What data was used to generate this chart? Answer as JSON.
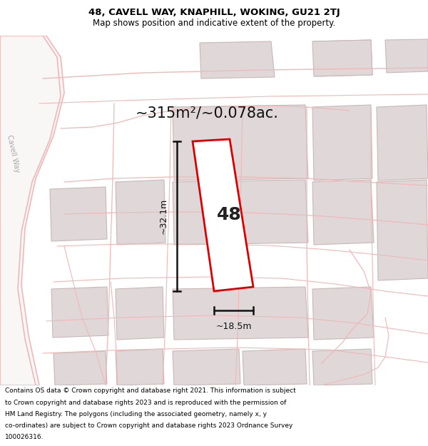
{
  "title_line1": "48, CAVELL WAY, KNAPHILL, WOKING, GU21 2TJ",
  "title_line2": "Map shows position and indicative extent of the property.",
  "area_label": "~315m²/~0.078ac.",
  "plot_number": "48",
  "dim_height": "~32.1m",
  "dim_width": "~18.5m",
  "footer_text": "Contains OS data © Crown copyright and database right 2021. This information is subject to Crown copyright and database rights 2023 and is reproduced with the permission of HM Land Registry. The polygons (including the associated geometry, namely x, y co-ordinates) are subject to Crown copyright and database rights 2023 Ordnance Survey 100026316.",
  "bg_color": "#ffffff",
  "map_bg": "#f9f6f6",
  "road_color": "#f0b8b8",
  "parcel_color": "#f0b8b8",
  "building_fill": "#e0d8d8",
  "building_edge": "#c8b8b8",
  "plot_outline_color": "#dd0000",
  "dim_color": "#111111",
  "cavell_text_color": "#aaaaaa",
  "area_text_color": "#111111"
}
